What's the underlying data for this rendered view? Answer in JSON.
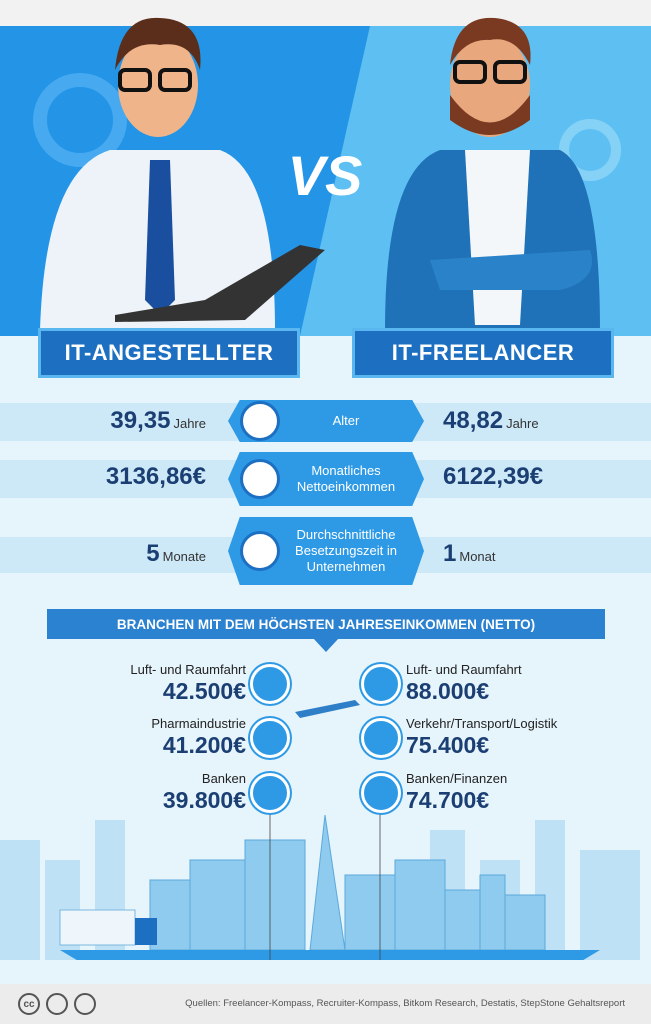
{
  "header": {
    "left_title": "IT-ANGESTELLTER",
    "vs": "VS",
    "right_title": "IT-FREELANCER"
  },
  "comparisons": [
    {
      "label_lines": [
        "Alter"
      ],
      "left_value": "39,35",
      "left_unit": "Jahre",
      "right_value": "48,82",
      "right_unit": "Jahre"
    },
    {
      "label_lines": [
        "Monatliches",
        "Nettoeinkommen"
      ],
      "left_value": "3136,86€",
      "right_value": "6122,39€"
    },
    {
      "label_lines": [
        "Durchschnittliche",
        "Besetzungszeit in",
        "Unternehmen"
      ],
      "left_value": "5",
      "left_unit": "Monate",
      "right_value": "1",
      "right_unit": "Monat"
    }
  ],
  "industries": {
    "title": "BRANCHEN MIT DEM HÖCHSTEN JAHRESEINKOMMEN (NETTO)",
    "left": [
      {
        "name": "Luft- und Raumfahrt",
        "value": "42.500€"
      },
      {
        "name": "Pharmaindustrie",
        "value": "41.200€"
      },
      {
        "name": "Banken",
        "value": "39.800€"
      }
    ],
    "right": [
      {
        "name": "Luft- und Raumfahrt",
        "value": "88.000€"
      },
      {
        "name": "Verkehr/Transport/Logistik",
        "value": "75.400€"
      },
      {
        "name": "Banken/Finanzen",
        "value": "74.700€"
      }
    ]
  },
  "footer": {
    "license": "cc",
    "sources": "Quellen: Freelancer-Kompass, Recruiter-Kompass, Bitkom Research, Destatis, StepStone Gehaltsreport"
  }
}
